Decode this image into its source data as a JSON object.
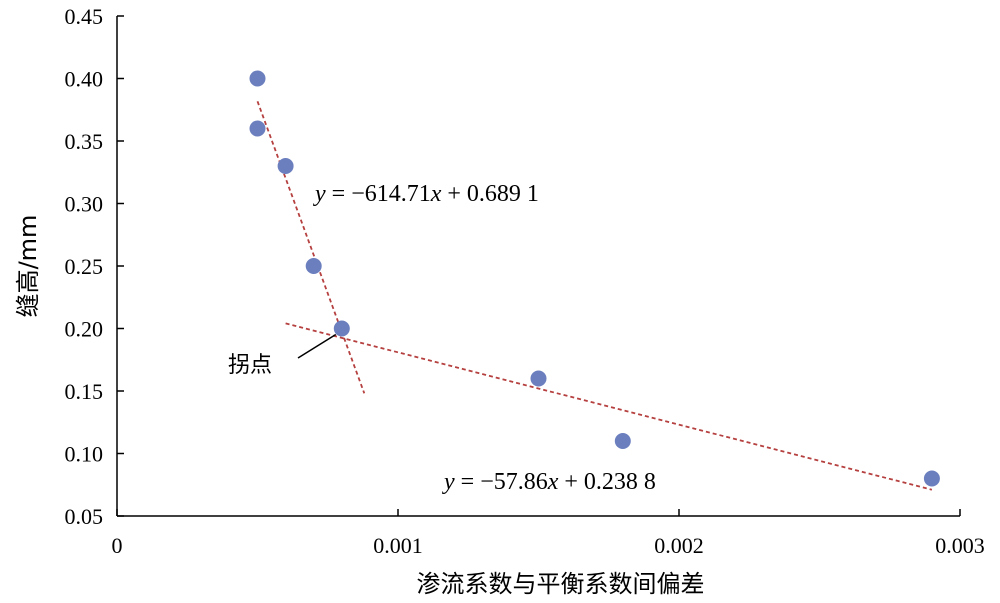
{
  "chart_data": {
    "type": "scatter",
    "xlabel": "渗流系数与平衡系数间偏差",
    "ylabel": "缝高/mm",
    "xlim": [
      0,
      0.003
    ],
    "ylim": [
      0.05,
      0.45
    ],
    "x_ticks": [
      "0",
      "0.001",
      "0.002",
      "0.003"
    ],
    "y_ticks": [
      "0.05",
      "0.10",
      "0.15",
      "0.20",
      "0.25",
      "0.30",
      "0.35",
      "0.40",
      "0.45"
    ],
    "grid": false,
    "points": [
      {
        "x": 0.0005,
        "y": 0.4
      },
      {
        "x": 0.0005,
        "y": 0.36
      },
      {
        "x": 0.0006,
        "y": 0.33
      },
      {
        "x": 0.0007,
        "y": 0.25
      },
      {
        "x": 0.0008,
        "y": 0.2
      },
      {
        "x": 0.0015,
        "y": 0.16
      },
      {
        "x": 0.0018,
        "y": 0.11
      },
      {
        "x": 0.0029,
        "y": 0.08
      }
    ],
    "point_color": "#6b7fbf",
    "trendline_color": "#b5403f",
    "trendlines": [
      {
        "slope": -614.71,
        "intercept": 0.6891,
        "x_range": [
          0.0005,
          0.00088
        ],
        "label": "= −614.71",
        "var_y": "y",
        "var_x": "x",
        "tail": " + 0.689 1"
      },
      {
        "slope": -57.86,
        "intercept": 0.2388,
        "x_range": [
          0.0006,
          0.0029
        ],
        "label": "= −57.86",
        "var_y": "y",
        "var_x": "x",
        "tail": " + 0.238 8"
      }
    ],
    "annotations": [
      {
        "text": "拐点",
        "target": {
          "x": 0.0008,
          "y": 0.2
        }
      }
    ]
  }
}
